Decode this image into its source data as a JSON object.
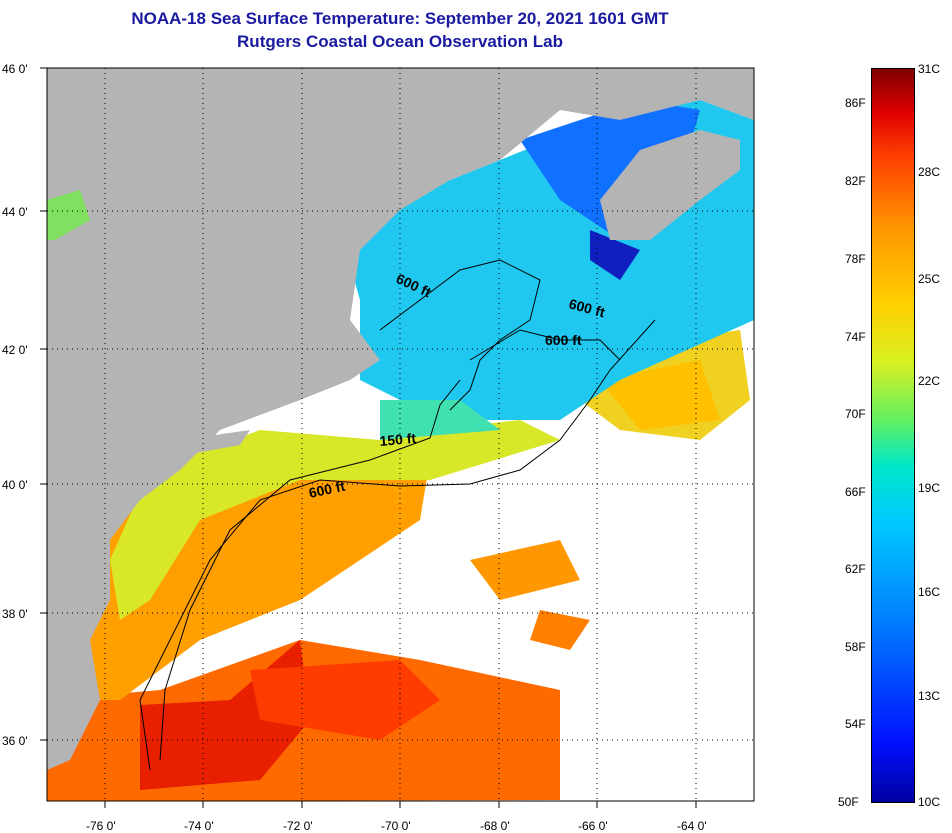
{
  "title": {
    "line1": "NOAA-18 Sea Surface Temperature:  September 20, 2021 1601 GMT",
    "line2": "Rutgers Coastal Ocean Observation Lab"
  },
  "axes": {
    "latitude_labels": [
      "46 0'",
      "44 0'",
      "42 0'",
      "40 0'",
      "38 0'",
      "36 0'"
    ],
    "longitude_labels": [
      "-76 0'",
      "-74 0'",
      "-72 0'",
      "-70 0'",
      "-68 0'",
      "-66 0'",
      "-64 0'"
    ]
  },
  "contour_labels": [
    "600 ft",
    "600 ft",
    "600 ft",
    "150 ft",
    "600 ft"
  ],
  "colorbar": {
    "fahrenheit_labels": [
      "86F",
      "82F",
      "78F",
      "74F",
      "70F",
      "66F",
      "62F",
      "58F",
      "54F",
      "50F"
    ],
    "celsius_labels": [
      "31C",
      "28C",
      "25C",
      "22C",
      "19C",
      "16C",
      "13C",
      "10C"
    ]
  },
  "colors": {
    "land": "#b4b4b4",
    "cloud": "#ffffff",
    "title": "#1a1aa0"
  }
}
